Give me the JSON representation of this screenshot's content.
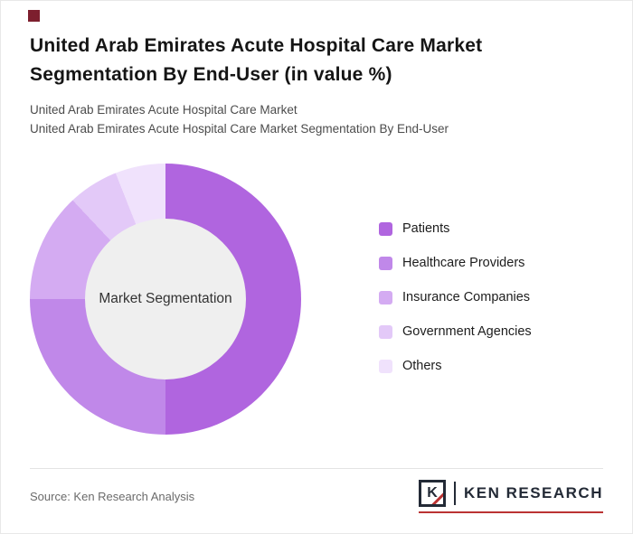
{
  "accent_color": "#7d1f2e",
  "title": "United Arab Emirates Acute Hospital Care Market Segmentation By End-User (in value %)",
  "subtitles": [
    "United Arab Emirates Acute Hospital Care Market",
    "United Arab Emirates Acute Hospital Care Market Segmentation By End-User"
  ],
  "chart_data": {
    "type": "pie",
    "subtype": "donut",
    "title": "United Arab Emirates Acute Hospital Care Market Segmentation By End-User (in value %)",
    "center_label": "Market Segmentation",
    "labels": [
      "Patients",
      "Healthcare Providers",
      "Insurance Companies",
      "Government Agencies",
      "Others"
    ],
    "values": [
      50,
      25,
      13,
      6,
      6
    ],
    "colors": [
      "#b065df",
      "#c088e9",
      "#d4abf2",
      "#e3c9f8",
      "#f0e2fc"
    ],
    "inner_hole_color": "#efefef",
    "legend_position": "right",
    "start_angle_deg": 0,
    "direction": "clockwise"
  },
  "footer": {
    "source_label": "Source: Ken Research Analysis",
    "logo_monogram": "K",
    "logo_text": "KEN RESEARCH"
  }
}
